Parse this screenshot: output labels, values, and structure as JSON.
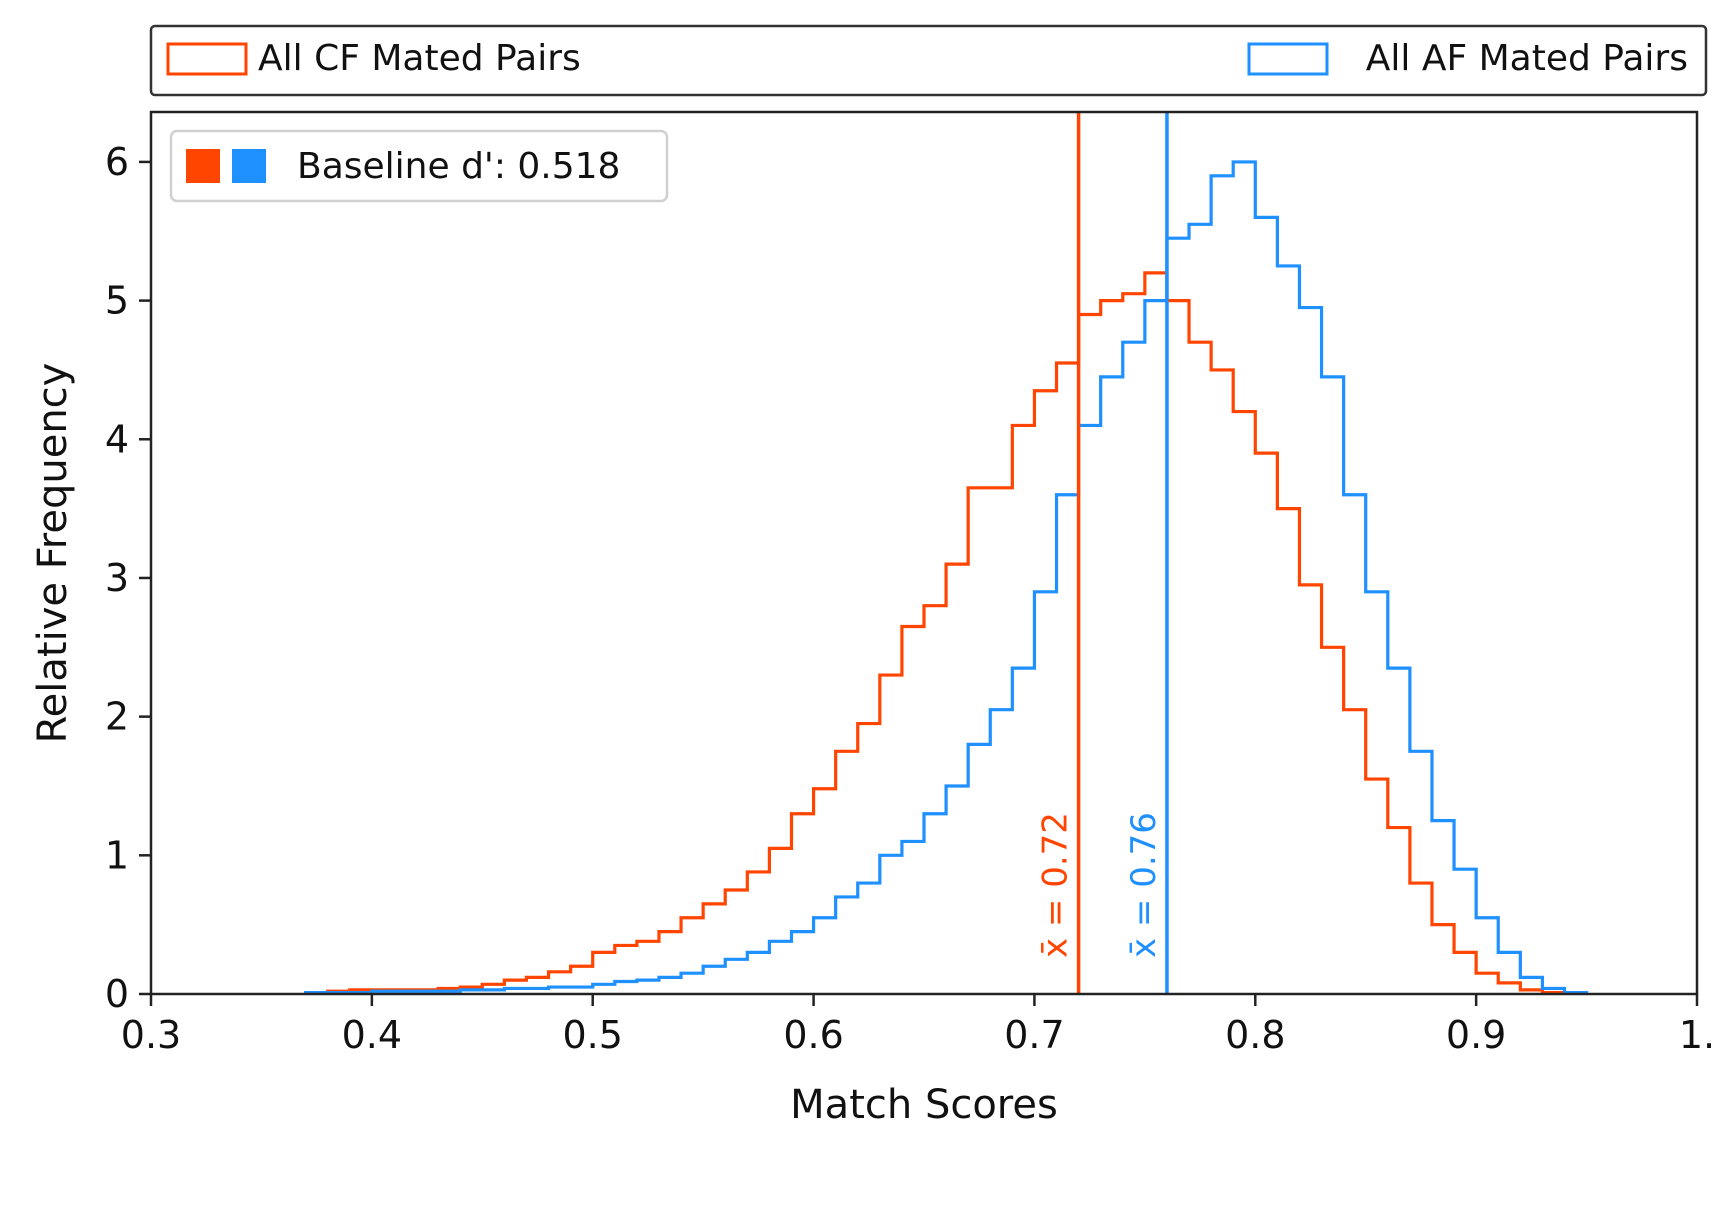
{
  "chart_data": {
    "type": "histogram",
    "title": "",
    "xlabel": "Match Scores",
    "ylabel": "Relative Frequency",
    "xlim": [
      0.3,
      1.0
    ],
    "ylim": [
      0,
      6.36
    ],
    "xticks": [
      "0.3",
      "0.4",
      "0.5",
      "0.6",
      "0.7",
      "0.8",
      "0.9",
      "1."
    ],
    "xtick_values": [
      0.3,
      0.4,
      0.5,
      0.6,
      0.7,
      0.8,
      0.9,
      1.0
    ],
    "yticks": [
      "0",
      "1",
      "2",
      "3",
      "4",
      "5",
      "6"
    ],
    "ytick_values": [
      0,
      1,
      2,
      3,
      4,
      5,
      6
    ],
    "grid": false,
    "bin_start": 0.37,
    "bin_width": 0.01,
    "series": [
      {
        "name": "All CF Mated Pairs",
        "color": "#FF4500",
        "values": [
          0.01,
          0.02,
          0.03,
          0.03,
          0.03,
          0.03,
          0.04,
          0.05,
          0.07,
          0.1,
          0.12,
          0.16,
          0.2,
          0.3,
          0.35,
          0.38,
          0.45,
          0.55,
          0.65,
          0.75,
          0.88,
          1.05,
          1.3,
          1.48,
          1.75,
          1.95,
          2.3,
          2.65,
          2.8,
          3.1,
          3.65,
          3.65,
          4.1,
          4.35,
          4.55,
          4.9,
          5.0,
          5.05,
          5.2,
          5.0,
          4.7,
          4.5,
          4.2,
          3.9,
          3.5,
          2.95,
          2.5,
          2.05,
          1.55,
          1.2,
          0.8,
          0.5,
          0.3,
          0.15,
          0.08,
          0.03,
          0.01,
          0.0
        ],
        "mean": 0.72,
        "mean_label": "x̄ = 0.72"
      },
      {
        "name": "All AF Mated Pairs",
        "color": "#1E90FF",
        "values": [
          0.01,
          0.01,
          0.01,
          0.02,
          0.02,
          0.02,
          0.02,
          0.03,
          0.03,
          0.04,
          0.04,
          0.05,
          0.05,
          0.07,
          0.09,
          0.1,
          0.12,
          0.15,
          0.2,
          0.25,
          0.3,
          0.38,
          0.45,
          0.55,
          0.7,
          0.8,
          1.0,
          1.1,
          1.3,
          1.5,
          1.8,
          2.05,
          2.35,
          2.9,
          3.6,
          4.1,
          4.45,
          4.7,
          5.0,
          5.45,
          5.55,
          5.9,
          6.0,
          5.6,
          5.25,
          4.95,
          4.45,
          3.6,
          2.9,
          2.35,
          1.75,
          1.25,
          0.9,
          0.55,
          0.3,
          0.12,
          0.04,
          0.01
        ],
        "mean": 0.76,
        "mean_label": "x̄ = 0.76"
      }
    ],
    "legend": {
      "placement": "top-outside",
      "entries": [
        "All CF Mated Pairs",
        "All AF Mated Pairs"
      ]
    },
    "annotation": {
      "placement": "top-left",
      "text": "Baseline d': 0.518"
    }
  }
}
